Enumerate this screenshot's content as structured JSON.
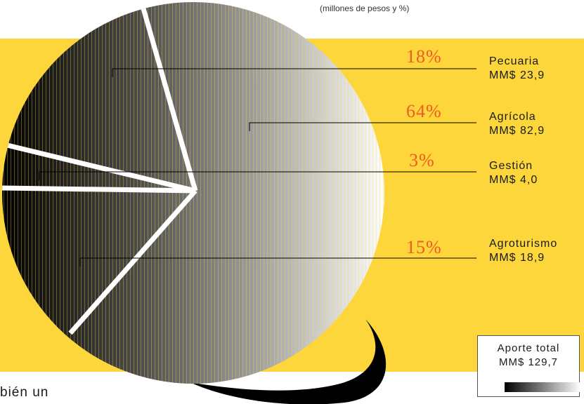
{
  "subtitle": "(millones de pesos y %)",
  "chart_data": {
    "type": "pie",
    "title": "",
    "subtitle": "(millones de pesos y %)",
    "slices": [
      {
        "label": "Pecuaria",
        "value_text": "MM$ 23,9",
        "value": 23.9,
        "percent": 18,
        "percent_text": "18%"
      },
      {
        "label": "Agrícola",
        "value_text": "MM$ 82,9",
        "value": 82.9,
        "percent": 64,
        "percent_text": "64%"
      },
      {
        "label": "Gestión",
        "value_text": "MM$ 4,0",
        "value": 4.0,
        "percent": 3,
        "percent_text": "3%"
      },
      {
        "label": "Agroturismo",
        "value_text": "MM$ 18,9",
        "value": 18.9,
        "percent": 15,
        "percent_text": "15%"
      }
    ],
    "total": {
      "label": "Aporte total",
      "value_text": "MM$ 129,7",
      "value": 129.7
    }
  },
  "body_text_fragment": "bién un",
  "colors": {
    "band": "#fcd63a",
    "percent_text": "#f15a24",
    "separator": "#ffffff",
    "leader_line": "#000000"
  }
}
